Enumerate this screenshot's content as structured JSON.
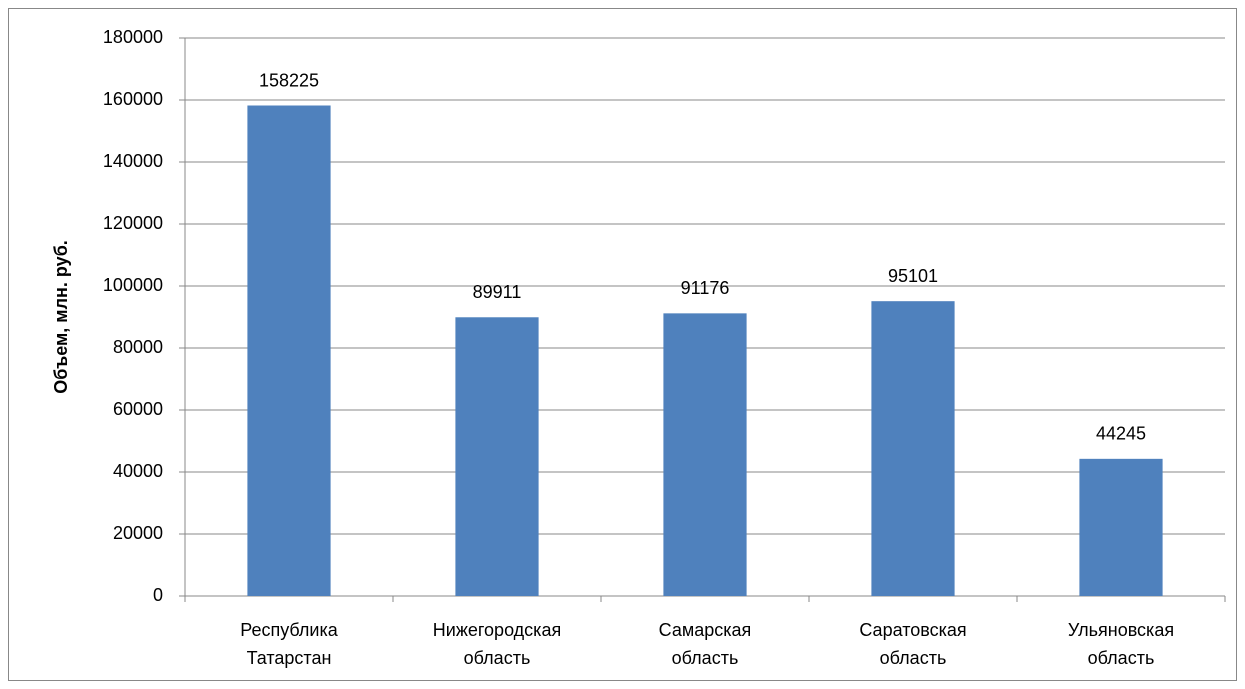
{
  "chart_data": {
    "type": "bar",
    "y_label": "Объем, млн. руб.",
    "categories": [
      "Республика Татарстан",
      "Нижегородская область",
      "Самарская область",
      "Саратовская область",
      "Ульяновская область"
    ],
    "values": [
      158225,
      89911,
      91176,
      95101,
      44245
    ],
    "color": "#4f81bd",
    "ylim": [
      0,
      180000
    ],
    "yticks": [
      0,
      20000,
      40000,
      60000,
      80000,
      100000,
      120000,
      140000,
      160000,
      180000
    ],
    "grid": true,
    "data_labels": true
  }
}
